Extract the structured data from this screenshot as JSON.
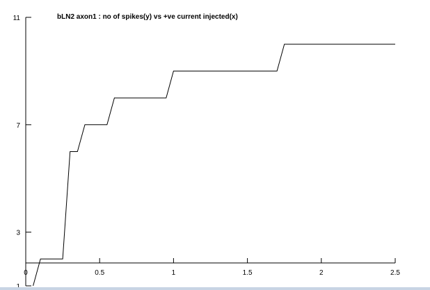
{
  "colors": {
    "background": "#ffffff",
    "line": "#000000",
    "bottom_strip": "#c8d4e4"
  },
  "chart_data": {
    "type": "line",
    "title": "bLN2 axon1 : no of spikes(y) vs +ve current injected(x)",
    "xlabel": "",
    "ylabel": "",
    "xlim": [
      0,
      2.5
    ],
    "ylim": [
      1,
      11
    ],
    "grid": false,
    "x_ticks": [
      "0",
      "0.5",
      "1",
      "1.5",
      "2",
      "2.5"
    ],
    "x_tick_values": [
      0,
      0.5,
      1,
      1.5,
      2,
      2.5
    ],
    "y_ticks": [
      "1",
      "3",
      "7",
      "11"
    ],
    "y_tick_values": [
      1,
      3,
      7,
      11
    ],
    "series": [
      {
        "x": [
          0.05,
          0.1,
          0.25,
          0.3,
          0.35,
          0.4,
          0.55,
          0.6,
          0.95,
          1.0,
          1.7,
          1.75,
          2.5
        ],
        "y": [
          1,
          2,
          2,
          6,
          6,
          7,
          7,
          8,
          8,
          9,
          9,
          10,
          10
        ]
      }
    ]
  }
}
